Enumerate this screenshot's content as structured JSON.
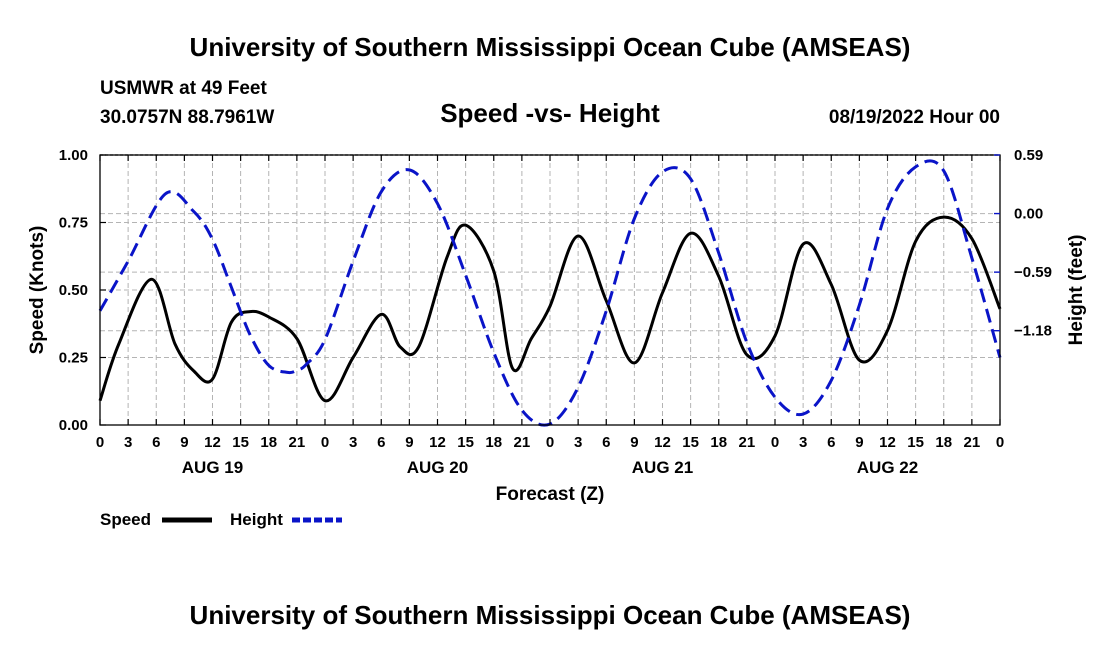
{
  "header": {
    "title": "University of Southern Mississippi Ocean Cube (AMSEAS)",
    "station": "USMWR at 49 Feet",
    "coords": "30.0757N  88.7961W",
    "date": "08/19/2022 Hour 00"
  },
  "footer": {
    "title": "University of Southern Mississippi Ocean Cube (AMSEAS)"
  },
  "colors": {
    "speed": "#000000",
    "height": "#0a14c8",
    "grid": "#b4b4b4"
  },
  "chart_data": {
    "type": "line",
    "title": "Speed -vs- Height",
    "xlabel": "Forecast (Z)",
    "ylabel": "Speed (Knots)",
    "y2label": "Height (feet)",
    "x_range_hours": [
      0,
      96
    ],
    "ylim": [
      0,
      1
    ],
    "y2lim": [
      -2.13,
      0.59
    ],
    "y_ticks": [
      "0.00",
      "0.25",
      "0.50",
      "0.75",
      "1.00"
    ],
    "y_tick_values": [
      0,
      0.25,
      0.5,
      0.75,
      1.0
    ],
    "y2_ticks": [
      "0.59",
      "0.00",
      "−0.59",
      "−1.18"
    ],
    "y2_tick_values": [
      0.59,
      0.0,
      -0.59,
      -1.18
    ],
    "x_tick_labels": [
      "0",
      "3",
      "6",
      "9",
      "12",
      "15",
      "18",
      "21",
      "0",
      "3",
      "6",
      "9",
      "12",
      "15",
      "18",
      "21",
      "0",
      "3",
      "6",
      "9",
      "12",
      "15",
      "18",
      "21",
      "0",
      "3",
      "6",
      "9",
      "12",
      "15",
      "18",
      "21",
      "0"
    ],
    "day_labels": [
      {
        "label": "AUG 19",
        "hour": 12
      },
      {
        "label": "AUG 20",
        "hour": 36
      },
      {
        "label": "AUG 21",
        "hour": 60
      },
      {
        "label": "AUG 22",
        "hour": 84
      }
    ],
    "series": [
      {
        "name": "Speed",
        "axis": "left",
        "style": "solid",
        "x": [
          0,
          2,
          5.5,
          8,
          10,
          12,
          14,
          16,
          18,
          21,
          24,
          27,
          30,
          32,
          34,
          37,
          39,
          42,
          44,
          46,
          48,
          51,
          54,
          57,
          60,
          63,
          66,
          69,
          72,
          75,
          78,
          81,
          84,
          87,
          90,
          93,
          96
        ],
        "values": [
          0.09,
          0.3,
          0.54,
          0.3,
          0.2,
          0.17,
          0.38,
          0.42,
          0.4,
          0.32,
          0.09,
          0.25,
          0.41,
          0.29,
          0.29,
          0.62,
          0.74,
          0.57,
          0.21,
          0.32,
          0.44,
          0.7,
          0.46,
          0.23,
          0.49,
          0.71,
          0.55,
          0.26,
          0.33,
          0.67,
          0.52,
          0.24,
          0.35,
          0.68,
          0.77,
          0.69,
          0.43
        ]
      },
      {
        "name": "Height",
        "axis": "right",
        "style": "dashed",
        "x": [
          0,
          3,
          7,
          10,
          12,
          14,
          16,
          18,
          20,
          21,
          22,
          24,
          27,
          30,
          33,
          36,
          39,
          42,
          45,
          48,
          51,
          54,
          57,
          60,
          63,
          66,
          69,
          72,
          75,
          78,
          81,
          84,
          87,
          90,
          93,
          96
        ],
        "values": [
          -0.98,
          -0.48,
          0.2,
          0.02,
          -0.26,
          -0.74,
          -1.22,
          -1.53,
          -1.6,
          -1.58,
          -1.52,
          -1.27,
          -0.48,
          0.22,
          0.44,
          0.1,
          -0.62,
          -1.4,
          -1.98,
          -2.12,
          -1.75,
          -0.98,
          -0.05,
          0.42,
          0.35,
          -0.4,
          -1.3,
          -1.85,
          -2.02,
          -1.68,
          -0.92,
          0.05,
          0.47,
          0.43,
          -0.45,
          -1.45
        ]
      }
    ],
    "legend": [
      {
        "label": "Speed"
      },
      {
        "label": "Height"
      }
    ]
  }
}
